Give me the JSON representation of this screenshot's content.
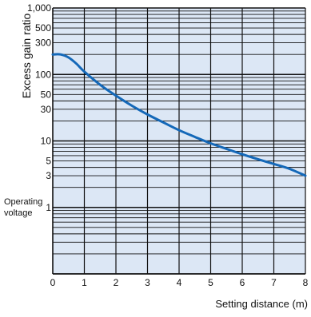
{
  "chart_data": {
    "type": "line",
    "title": "",
    "xlabel": "Setting distance (m)",
    "ylabel": "Excess gain ratio",
    "x_ticks": [
      0,
      1,
      2,
      3,
      4,
      5,
      6,
      7,
      8
    ],
    "x_tick_labels": [
      "0",
      "1",
      "2",
      "3",
      "4",
      "5",
      "6",
      "7",
      "8"
    ],
    "xlim": [
      0,
      8
    ],
    "y_scale": "log",
    "ylim": [
      0.1,
      1000
    ],
    "y_tick_labels": [
      {
        "value": 1000,
        "label": "1,000"
      },
      {
        "value": 500,
        "label": "500"
      },
      {
        "value": 300,
        "label": "300"
      },
      {
        "value": 100,
        "label": "100"
      },
      {
        "value": 50,
        "label": "50"
      },
      {
        "value": 30,
        "label": "30"
      },
      {
        "value": 10,
        "label": "10"
      },
      {
        "value": 5,
        "label": "5"
      },
      {
        "value": 3,
        "label": "3"
      },
      {
        "value": 1,
        "label": "1"
      }
    ],
    "annotation": {
      "text_line1": "Operating",
      "text_line2": "voltage",
      "at_value": 1
    },
    "grid": true,
    "colors": {
      "plot_background": "#dce7f5",
      "grid": "#111111",
      "series": "#1468b8"
    },
    "series": [
      {
        "x": [
          0,
          0.25,
          0.5,
          0.75,
          1,
          1.5,
          2,
          2.5,
          3,
          3.5,
          4,
          4.5,
          5,
          5.5,
          6,
          6.5,
          7,
          7.5,
          8
        ],
        "y": [
          200,
          200,
          180,
          145,
          110,
          70,
          48,
          34,
          25,
          19,
          14.5,
          11.5,
          9.2,
          7.6,
          6.3,
          5.3,
          4.5,
          3.8,
          3
        ]
      }
    ]
  }
}
